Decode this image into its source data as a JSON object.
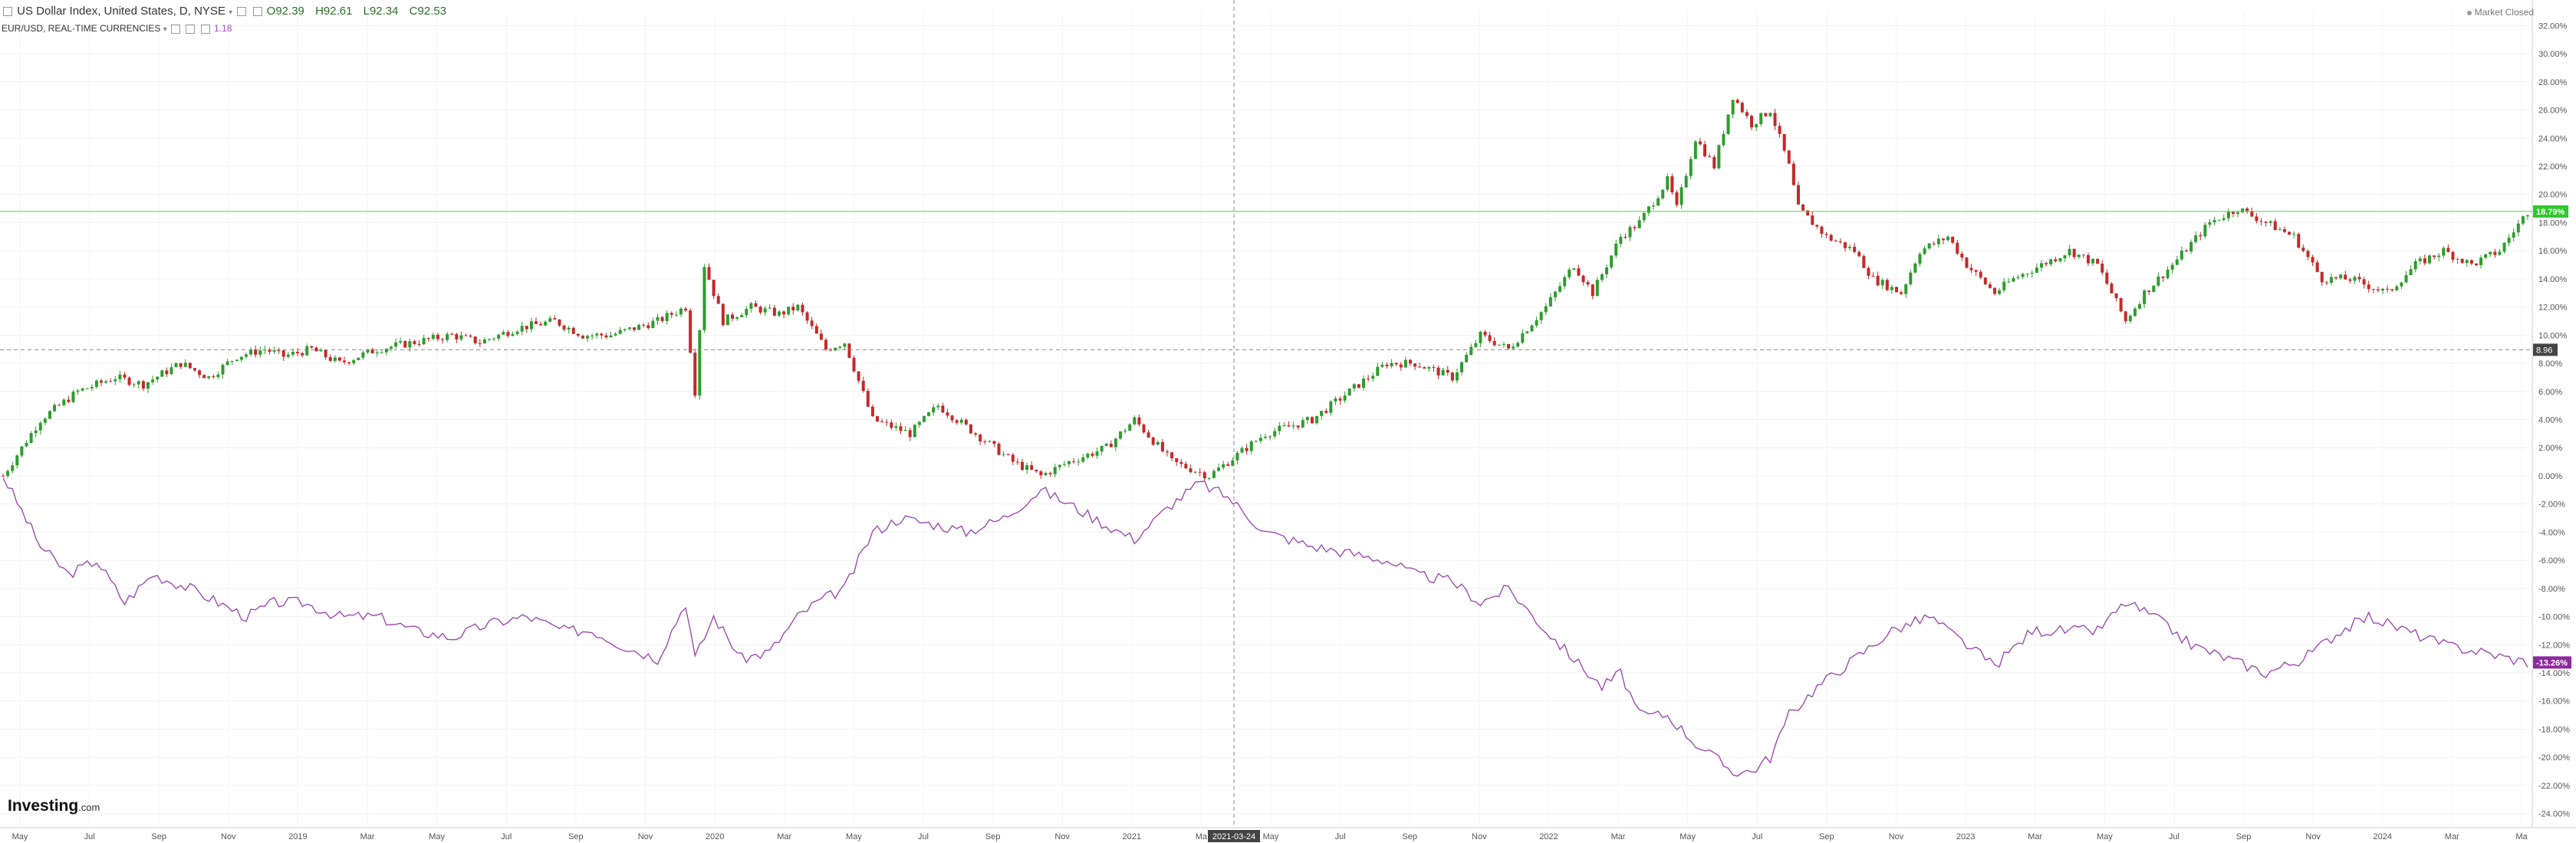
{
  "header": {
    "title": "US Dollar Index, United States, D, NYSE",
    "open": "O92.39",
    "high": "H92.61",
    "low": "L92.34",
    "close": "C92.53",
    "compare_title": "EUR/USD, REAL-TIME CURRENCIES",
    "compare_value": "1.18"
  },
  "market_status": "Market Closed",
  "brand": {
    "name": "Investing",
    "suffix": ".com"
  },
  "crosshair_date": "2021-03-24",
  "colors": {
    "up": "#2e9c2e",
    "down": "#c62828",
    "compare_line": "#9c4cb0",
    "current_line": "#4cd14c"
  },
  "chart_data": {
    "type": "line",
    "y_unit": "%",
    "ylim": [
      -25,
      33
    ],
    "y_ticks": [
      32,
      30,
      28,
      26,
      24,
      22,
      20,
      18,
      16,
      14,
      12,
      10,
      8,
      6,
      4,
      2,
      0,
      -2,
      -4,
      -6,
      -8,
      -10,
      -12,
      -14,
      -16,
      -18,
      -20,
      -22,
      -24
    ],
    "x_labels": [
      "May",
      "Jul",
      "Sep",
      "Nov",
      "2019",
      "Mar",
      "May",
      "Jul",
      "Sep",
      "Nov",
      "2020",
      "Mar",
      "May",
      "Jul",
      "Sep",
      "Nov",
      "2021",
      "Ma",
      "May",
      "Jul",
      "Sep",
      "Nov",
      "2022",
      "Mar",
      "May",
      "Jul",
      "Sep",
      "Nov",
      "2023",
      "Mar",
      "May",
      "Jul",
      "Sep",
      "Nov",
      "2024",
      "Mar",
      "Ma"
    ],
    "current_labels": {
      "us_dollar_index": "18.79%",
      "eur_usd": "-13.26%",
      "crosshair_value": "8.96"
    },
    "crosshair_y": 8.96,
    "series": [
      {
        "name": "US Dollar Index",
        "style": "candlestick",
        "points": [
          [
            0,
            0
          ],
          [
            8,
            4
          ],
          [
            16,
            6
          ],
          [
            24,
            7
          ],
          [
            30,
            6.5
          ],
          [
            38,
            8
          ],
          [
            44,
            7
          ],
          [
            50,
            8.5
          ],
          [
            56,
            9
          ],
          [
            60,
            8.5
          ],
          [
            66,
            9
          ],
          [
            72,
            8
          ],
          [
            80,
            9
          ],
          [
            88,
            9.5
          ],
          [
            96,
            10
          ],
          [
            102,
            9.5
          ],
          [
            110,
            10.5
          ],
          [
            118,
            11
          ],
          [
            124,
            10
          ],
          [
            130,
            10
          ],
          [
            140,
            11
          ],
          [
            146,
            12
          ],
          [
            148,
            6
          ],
          [
            150,
            15
          ],
          [
            154,
            11
          ],
          [
            160,
            12
          ],
          [
            166,
            11.5
          ],
          [
            170,
            12
          ],
          [
            176,
            9
          ],
          [
            180,
            9.5
          ],
          [
            186,
            4
          ],
          [
            194,
            3
          ],
          [
            200,
            5
          ],
          [
            208,
            3
          ],
          [
            216,
            1
          ],
          [
            222,
            0
          ],
          [
            228,
            1
          ],
          [
            236,
            2
          ],
          [
            242,
            4
          ],
          [
            250,
            1
          ],
          [
            258,
            0
          ],
          [
            262,
            1
          ],
          [
            270,
            3
          ],
          [
            280,
            4
          ],
          [
            288,
            6
          ],
          [
            296,
            8
          ],
          [
            302,
            8
          ],
          [
            310,
            7
          ],
          [
            316,
            10
          ],
          [
            322,
            9
          ],
          [
            330,
            12
          ],
          [
            336,
            15
          ],
          [
            340,
            13
          ],
          [
            346,
            17
          ],
          [
            350,
            18
          ],
          [
            356,
            21
          ],
          [
            358,
            19
          ],
          [
            362,
            24
          ],
          [
            366,
            22
          ],
          [
            370,
            27
          ],
          [
            374,
            25
          ],
          [
            378,
            26
          ],
          [
            382,
            22
          ],
          [
            384,
            19
          ],
          [
            390,
            17
          ],
          [
            396,
            16
          ],
          [
            400,
            14
          ],
          [
            406,
            13
          ],
          [
            410,
            16
          ],
          [
            416,
            17
          ],
          [
            420,
            15
          ],
          [
            426,
            13
          ],
          [
            430,
            14
          ],
          [
            436,
            15
          ],
          [
            442,
            16
          ],
          [
            448,
            15
          ],
          [
            454,
            11
          ],
          [
            458,
            13
          ],
          [
            464,
            15
          ],
          [
            472,
            18
          ],
          [
            478,
            19
          ],
          [
            484,
            18
          ],
          [
            490,
            17
          ],
          [
            496,
            14
          ],
          [
            502,
            14
          ],
          [
            510,
            13
          ],
          [
            516,
            15
          ],
          [
            522,
            16
          ],
          [
            528,
            15
          ],
          [
            534,
            16
          ],
          [
            540,
            18.79
          ]
        ]
      },
      {
        "name": "EUR/USD",
        "style": "line",
        "points": [
          [
            0,
            0
          ],
          [
            8,
            -5
          ],
          [
            14,
            -7
          ],
          [
            20,
            -6
          ],
          [
            26,
            -9
          ],
          [
            32,
            -7
          ],
          [
            40,
            -8
          ],
          [
            46,
            -9
          ],
          [
            52,
            -10
          ],
          [
            58,
            -9
          ],
          [
            64,
            -9
          ],
          [
            72,
            -10
          ],
          [
            80,
            -10
          ],
          [
            88,
            -11
          ],
          [
            96,
            -11.5
          ],
          [
            104,
            -10.5
          ],
          [
            112,
            -10
          ],
          [
            120,
            -11
          ],
          [
            126,
            -11
          ],
          [
            132,
            -12
          ],
          [
            140,
            -13
          ],
          [
            146,
            -9
          ],
          [
            148,
            -13
          ],
          [
            152,
            -10
          ],
          [
            158,
            -13
          ],
          [
            164,
            -12.5
          ],
          [
            170,
            -10
          ],
          [
            174,
            -9
          ],
          [
            180,
            -8
          ],
          [
            186,
            -4
          ],
          [
            192,
            -3
          ],
          [
            200,
            -3.5
          ],
          [
            206,
            -4
          ],
          [
            214,
            -3
          ],
          [
            222,
            -1
          ],
          [
            228,
            -2
          ],
          [
            236,
            -3.5
          ],
          [
            242,
            -4.5
          ],
          [
            250,
            -2
          ],
          [
            256,
            -0.5
          ],
          [
            262,
            -1.5
          ],
          [
            270,
            -4
          ],
          [
            280,
            -5
          ],
          [
            288,
            -5.5
          ],
          [
            296,
            -6
          ],
          [
            302,
            -7
          ],
          [
            310,
            -7.5
          ],
          [
            316,
            -9
          ],
          [
            322,
            -8
          ],
          [
            330,
            -11
          ],
          [
            336,
            -13
          ],
          [
            342,
            -15
          ],
          [
            346,
            -14
          ],
          [
            350,
            -17
          ],
          [
            356,
            -17
          ],
          [
            362,
            -19
          ],
          [
            366,
            -20
          ],
          [
            370,
            -21
          ],
          [
            374,
            -21
          ],
          [
            378,
            -20
          ],
          [
            382,
            -17
          ],
          [
            388,
            -15
          ],
          [
            396,
            -13
          ],
          [
            404,
            -11
          ],
          [
            412,
            -10
          ],
          [
            420,
            -12
          ],
          [
            426,
            -13.5
          ],
          [
            434,
            -11
          ],
          [
            442,
            -11
          ],
          [
            448,
            -11
          ],
          [
            454,
            -9
          ],
          [
            460,
            -10
          ],
          [
            468,
            -12
          ],
          [
            476,
            -13
          ],
          [
            484,
            -14
          ],
          [
            492,
            -13
          ],
          [
            500,
            -11
          ],
          [
            506,
            -10
          ],
          [
            514,
            -11
          ],
          [
            522,
            -12
          ],
          [
            530,
            -12.5
          ],
          [
            540,
            -13.26
          ]
        ]
      }
    ]
  }
}
